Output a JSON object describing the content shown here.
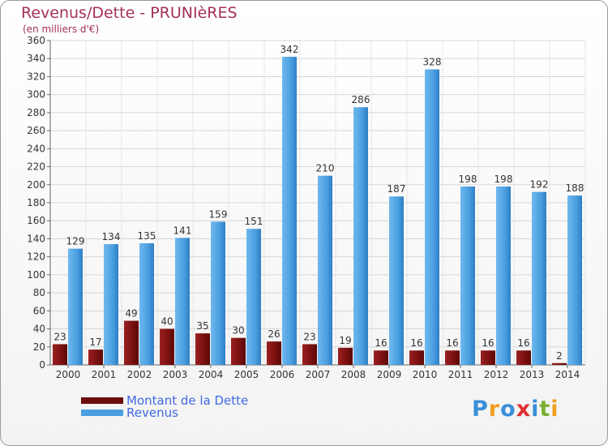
{
  "title": "Revenus/Dette - PRUNIèRES",
  "subtitle": "(en milliers d'€)",
  "chart_data": {
    "type": "bar",
    "categories": [
      "2000",
      "2001",
      "2002",
      "2003",
      "2004",
      "2005",
      "2006",
      "2007",
      "2008",
      "2009",
      "2010",
      "2011",
      "2012",
      "2013",
      "2014"
    ],
    "series": [
      {
        "name": "Montant de la Dette",
        "color": "#7a1010",
        "values": [
          23,
          17,
          49,
          40,
          35,
          30,
          26,
          23,
          19,
          16,
          16,
          16,
          16,
          16,
          2
        ]
      },
      {
        "name": "Revenus",
        "color": "#4a9fe0",
        "values": [
          129,
          134,
          135,
          141,
          159,
          151,
          342,
          210,
          286,
          187,
          328,
          198,
          198,
          192,
          188
        ]
      }
    ],
    "ylim": [
      0,
      360
    ],
    "yticks": [
      0,
      20,
      40,
      60,
      80,
      100,
      120,
      140,
      160,
      180,
      200,
      220,
      240,
      260,
      280,
      300,
      320,
      340,
      360
    ],
    "grid": true,
    "legend_position": "bottom-left"
  },
  "legend": [
    {
      "label": "Montant de la Dette",
      "color": "#6b0d0d"
    },
    {
      "label": "Revenus",
      "color": "#4a9fe0"
    }
  ],
  "logo": {
    "text": "Proxiti",
    "letters": [
      {
        "ch": "P",
        "color": "#3a8fd8"
      },
      {
        "ch": "r",
        "color": "#f0a020"
      },
      {
        "ch": "o",
        "color": "#3a8fd8"
      },
      {
        "ch": "x",
        "color": "#e03030"
      },
      {
        "ch": "i",
        "color": "#3a8fd8"
      },
      {
        "ch": "t",
        "color": "#7ab030"
      },
      {
        "ch": "i",
        "color": "#f0a020"
      }
    ]
  }
}
